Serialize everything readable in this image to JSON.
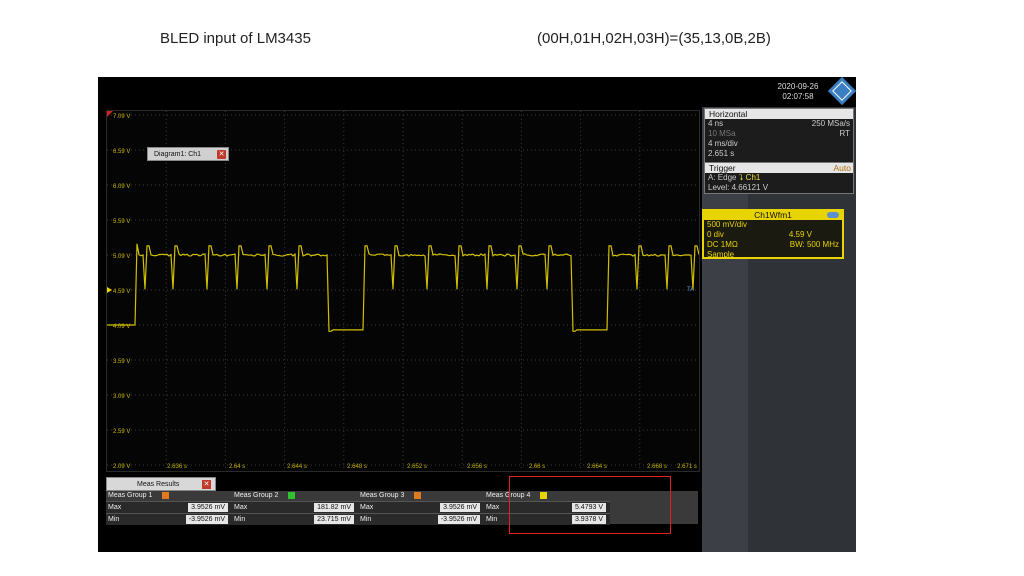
{
  "slide": {
    "title_left": "BLED input of LM3435",
    "title_right": "(00H,01H,02H,03H)=(35,13,0B,2B)"
  },
  "clock": {
    "date": "2020-09-26",
    "time": "02:07:58"
  },
  "diagram_tab": {
    "label": "Diagram1: Ch1"
  },
  "plot": {
    "y_labels": [
      "7.09 V",
      "6.59 V",
      "6.09 V",
      "5.59 V",
      "5.09 V",
      "4.59 V",
      "4.09 V",
      "3.59 V",
      "3.09 V",
      "2.59 V",
      "2.09 V"
    ],
    "x_labels": [
      "2.636 s",
      "2.64 s",
      "2.644 s",
      "2.648 s",
      "2.652 s",
      "2.656 s",
      "2.66 s",
      "2.664 s",
      "2.668 s",
      "2.671 s"
    ],
    "trigger_marker": "TA",
    "trace_color": "#e8d400"
  },
  "horizontal": {
    "header": "Horizontal",
    "rows": [
      {
        "left": "4 ns",
        "right": "250 MSa/s"
      },
      {
        "left": "10 MSa",
        "right": "RT"
      },
      {
        "left": "4 ms/div",
        "right": ""
      },
      {
        "left": "2.651 s",
        "right": ""
      }
    ]
  },
  "trigger": {
    "header": "Trigger",
    "mode": "Auto",
    "source_line": "A:    Edge",
    "edge_symbol": "⮧",
    "channel": "Ch1",
    "level": "Level: 4.66121 V"
  },
  "channel": {
    "header": "Ch1Wfm1",
    "rows": [
      {
        "left": "500 mV/div",
        "right": ""
      },
      {
        "left": "0 div",
        "right": "4.59 V"
      },
      {
        "left": "DC 1MΩ",
        "right": "BW: 500 MHz"
      },
      {
        "left": "Sample",
        "right": ""
      }
    ]
  },
  "meas_tab": {
    "label": "Meas Results"
  },
  "meas_groups": [
    {
      "name": "Meas Group 1",
      "color": "#e07a20",
      "max_label": "Max",
      "max": "3.9526 mV",
      "min_label": "Min",
      "min": "-3.9526 mV"
    },
    {
      "name": "Meas Group 2",
      "color": "#30c030",
      "max_label": "Max",
      "max": "181.82 mV",
      "min_label": "Min",
      "min": "23.715 mV"
    },
    {
      "name": "Meas Group 3",
      "color": "#e07a20",
      "max_label": "Max",
      "max": "3.9526 mV",
      "min_label": "Min",
      "min": "-3.9526 mV"
    },
    {
      "name": "Meas Group 4",
      "color": "#e8d400",
      "max_label": "Max",
      "max": "5.4793 V",
      "min_label": "Min",
      "min": "3.9378 V"
    }
  ],
  "colors": {
    "highlight_box": "#e02020"
  }
}
